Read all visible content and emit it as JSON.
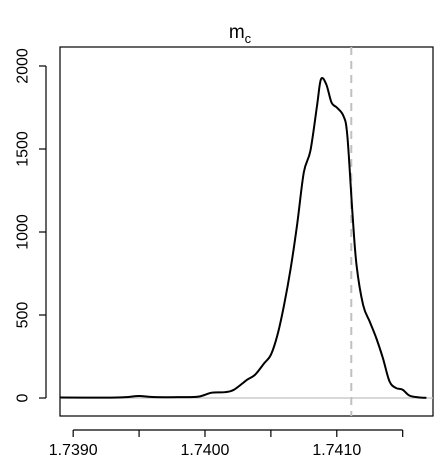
{
  "chart_data": {
    "type": "line",
    "title": "m",
    "title_subscript": "c",
    "xlabel": "",
    "ylabel": "",
    "xlim": [
      1.7389,
      1.74173
    ],
    "ylim": [
      0,
      2000
    ],
    "x_ticks": [
      1.739,
      1.7395,
      1.74,
      1.7405,
      1.741,
      1.7415
    ],
    "x_tick_labels": [
      "1.7390",
      "",
      "1.7400",
      "",
      "1.7410",
      ""
    ],
    "y_ticks": [
      0,
      500,
      1000,
      1500,
      2000
    ],
    "y_tick_labels": [
      "0",
      "500",
      "1000",
      "1500",
      "2000"
    ],
    "grid": false,
    "reference_line": {
      "x": 1.74111,
      "style": "dashed",
      "color": "#c0c0c0"
    },
    "baseline": {
      "y": 0,
      "color": "#c0c0c0"
    },
    "series": [
      {
        "color": "#000000",
        "points": [
          [
            1.7389,
            3
          ],
          [
            1.73925,
            2
          ],
          [
            1.7394,
            5
          ],
          [
            1.7395,
            12
          ],
          [
            1.7396,
            6
          ],
          [
            1.7398,
            5
          ],
          [
            1.73995,
            8
          ],
          [
            1.74005,
            32
          ],
          [
            1.74015,
            35
          ],
          [
            1.74022,
            50
          ],
          [
            1.74032,
            110
          ],
          [
            1.74038,
            140
          ],
          [
            1.74045,
            210
          ],
          [
            1.7405,
            260
          ],
          [
            1.74055,
            380
          ],
          [
            1.7406,
            560
          ],
          [
            1.74065,
            780
          ],
          [
            1.7407,
            1050
          ],
          [
            1.74075,
            1360
          ],
          [
            1.7408,
            1490
          ],
          [
            1.74085,
            1760
          ],
          [
            1.74088,
            1920
          ],
          [
            1.74092,
            1890
          ],
          [
            1.74096,
            1780
          ],
          [
            1.741,
            1750
          ],
          [
            1.74105,
            1700
          ],
          [
            1.74108,
            1580
          ],
          [
            1.74112,
            1100
          ],
          [
            1.74115,
            800
          ],
          [
            1.7412,
            560
          ],
          [
            1.74125,
            460
          ],
          [
            1.7413,
            360
          ],
          [
            1.74135,
            240
          ],
          [
            1.7414,
            100
          ],
          [
            1.74145,
            60
          ],
          [
            1.7415,
            50
          ],
          [
            1.74155,
            15
          ],
          [
            1.74162,
            4
          ],
          [
            1.74168,
            1
          ]
        ]
      }
    ]
  }
}
